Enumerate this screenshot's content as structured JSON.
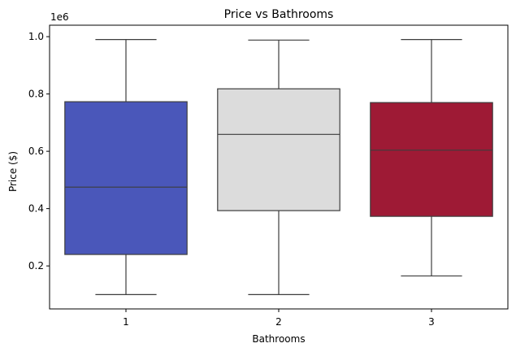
{
  "chart_data": {
    "type": "box",
    "title": "Price vs Bathrooms",
    "xlabel": "Bathrooms",
    "ylabel": "Price ($)",
    "y_offset_label": "1e6",
    "categories": [
      "1",
      "2",
      "3"
    ],
    "ylim": [
      0.05,
      1.04
    ],
    "yticks": [
      0.2,
      0.4,
      0.6,
      0.8,
      1.0
    ],
    "ytick_labels": [
      "0.2",
      "0.4",
      "0.6",
      "0.8",
      "1.0"
    ],
    "grid": false,
    "legend": "none",
    "boxes": [
      {
        "category": "1",
        "whisker_low": 0.1,
        "q1": 0.24,
        "median": 0.475,
        "q3": 0.773,
        "whisker_high": 0.99,
        "color": "#4a57ba"
      },
      {
        "category": "2",
        "whisker_low": 0.1,
        "q1": 0.393,
        "median": 0.659,
        "q3": 0.818,
        "whisker_high": 0.988,
        "color": "#dcdcdc"
      },
      {
        "category": "3",
        "whisker_low": 0.165,
        "q1": 0.373,
        "median": 0.604,
        "q3": 0.77,
        "whisker_high": 0.99,
        "color": "#9e1a35"
      }
    ],
    "line_color": "#3d3d3d"
  }
}
